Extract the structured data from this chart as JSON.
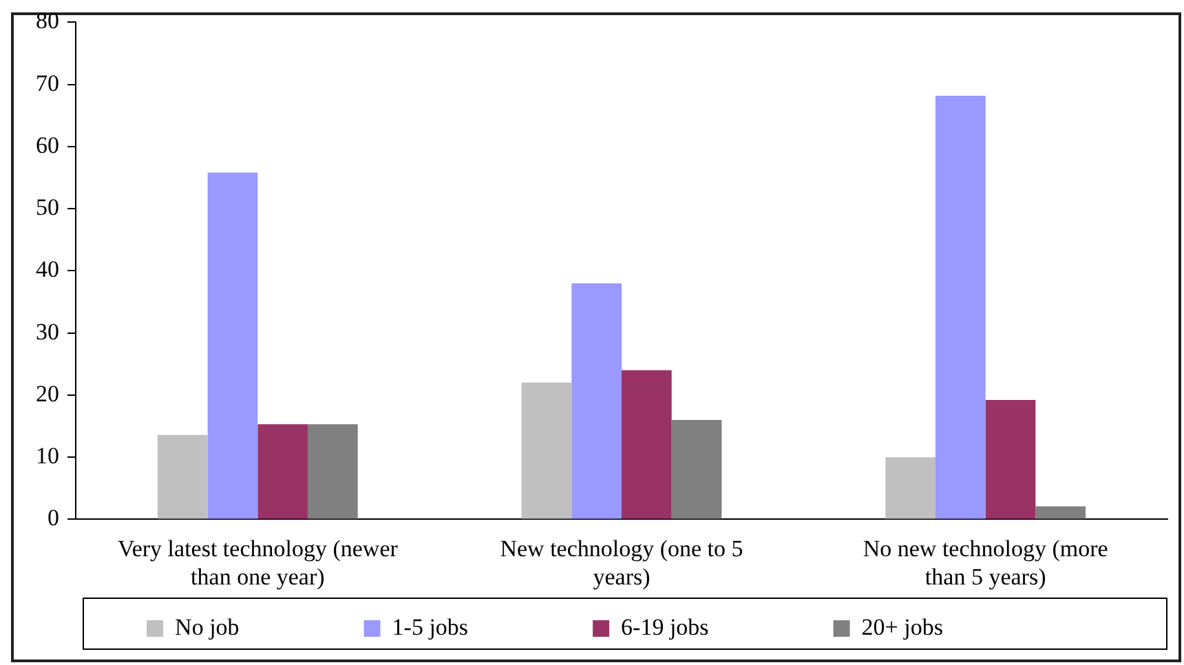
{
  "chart_data": {
    "type": "bar",
    "categories": [
      "Very latest technology (newer than one year)",
      "New technology (one to 5 years)",
      "No new technology (more than 5 years)"
    ],
    "series": [
      {
        "name": "No job",
        "color": "#c0c0c0",
        "values": [
          13.6,
          22,
          10
        ]
      },
      {
        "name": "1-5 jobs",
        "color": "#9999ff",
        "values": [
          55.8,
          38,
          68.2
        ]
      },
      {
        "name": "6-19 jobs",
        "color": "#993366",
        "values": [
          15.3,
          24,
          19.2
        ]
      },
      {
        "name": "20+ jobs",
        "color": "#808080",
        "values": [
          15.3,
          16,
          2.1
        ]
      }
    ],
    "ylim": [
      0,
      80
    ],
    "yticks": [
      0,
      10,
      20,
      30,
      40,
      50,
      60,
      70,
      80
    ],
    "grid": false,
    "legend": "bottom"
  }
}
